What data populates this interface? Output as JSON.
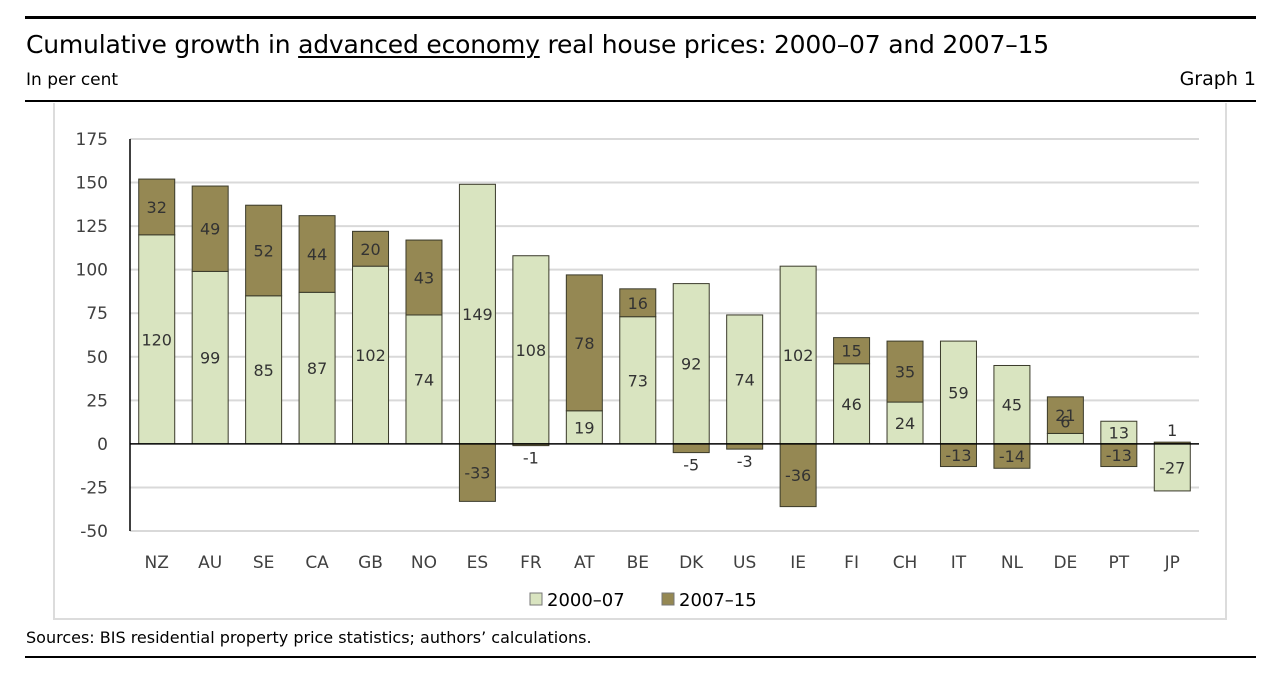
{
  "header": {
    "title_pre": "Cumulative growth in ",
    "title_link": "advanced economy",
    "title_post": " real house prices: 2000–07 and 2007–15",
    "subtitle": "In per cent",
    "graph_number": "Graph 1"
  },
  "footer": {
    "sources": "Sources: BIS residential property price statistics; authors’ calculations."
  },
  "colors": {
    "series_2000_07": "#d9e4c0",
    "series_2007_15": "#958853",
    "bar_border": "#3a3a2a",
    "gridline": "#d9d9d9",
    "axis": "#000000"
  },
  "chart_data": {
    "type": "bar",
    "stacked": true,
    "title": "Cumulative growth in advanced economy real house prices: 2000–07 and 2007–15",
    "subtitle": "In per cent",
    "xlabel": "",
    "ylabel": "",
    "ylim": [
      -50,
      175
    ],
    "yticks": [
      175,
      150,
      125,
      100,
      75,
      50,
      25,
      0,
      -25,
      -50
    ],
    "grid": true,
    "legend_position": "bottom-center",
    "categories": [
      "NZ",
      "AU",
      "SE",
      "CA",
      "GB",
      "NO",
      "ES",
      "FR",
      "AT",
      "BE",
      "DK",
      "US",
      "IE",
      "FI",
      "CH",
      "IT",
      "NL",
      "DE",
      "PT",
      "JP"
    ],
    "series": [
      {
        "name": "2000–07",
        "values": [
          120,
          99,
          85,
          87,
          102,
          74,
          149,
          108,
          19,
          73,
          92,
          74,
          102,
          46,
          24,
          59,
          45,
          6,
          13,
          -27
        ]
      },
      {
        "name": "2007–15",
        "values": [
          32,
          49,
          52,
          44,
          20,
          43,
          -33,
          -1,
          78,
          16,
          -5,
          -3,
          -36,
          15,
          35,
          -13,
          -14,
          21,
          -13,
          1
        ]
      }
    ]
  }
}
